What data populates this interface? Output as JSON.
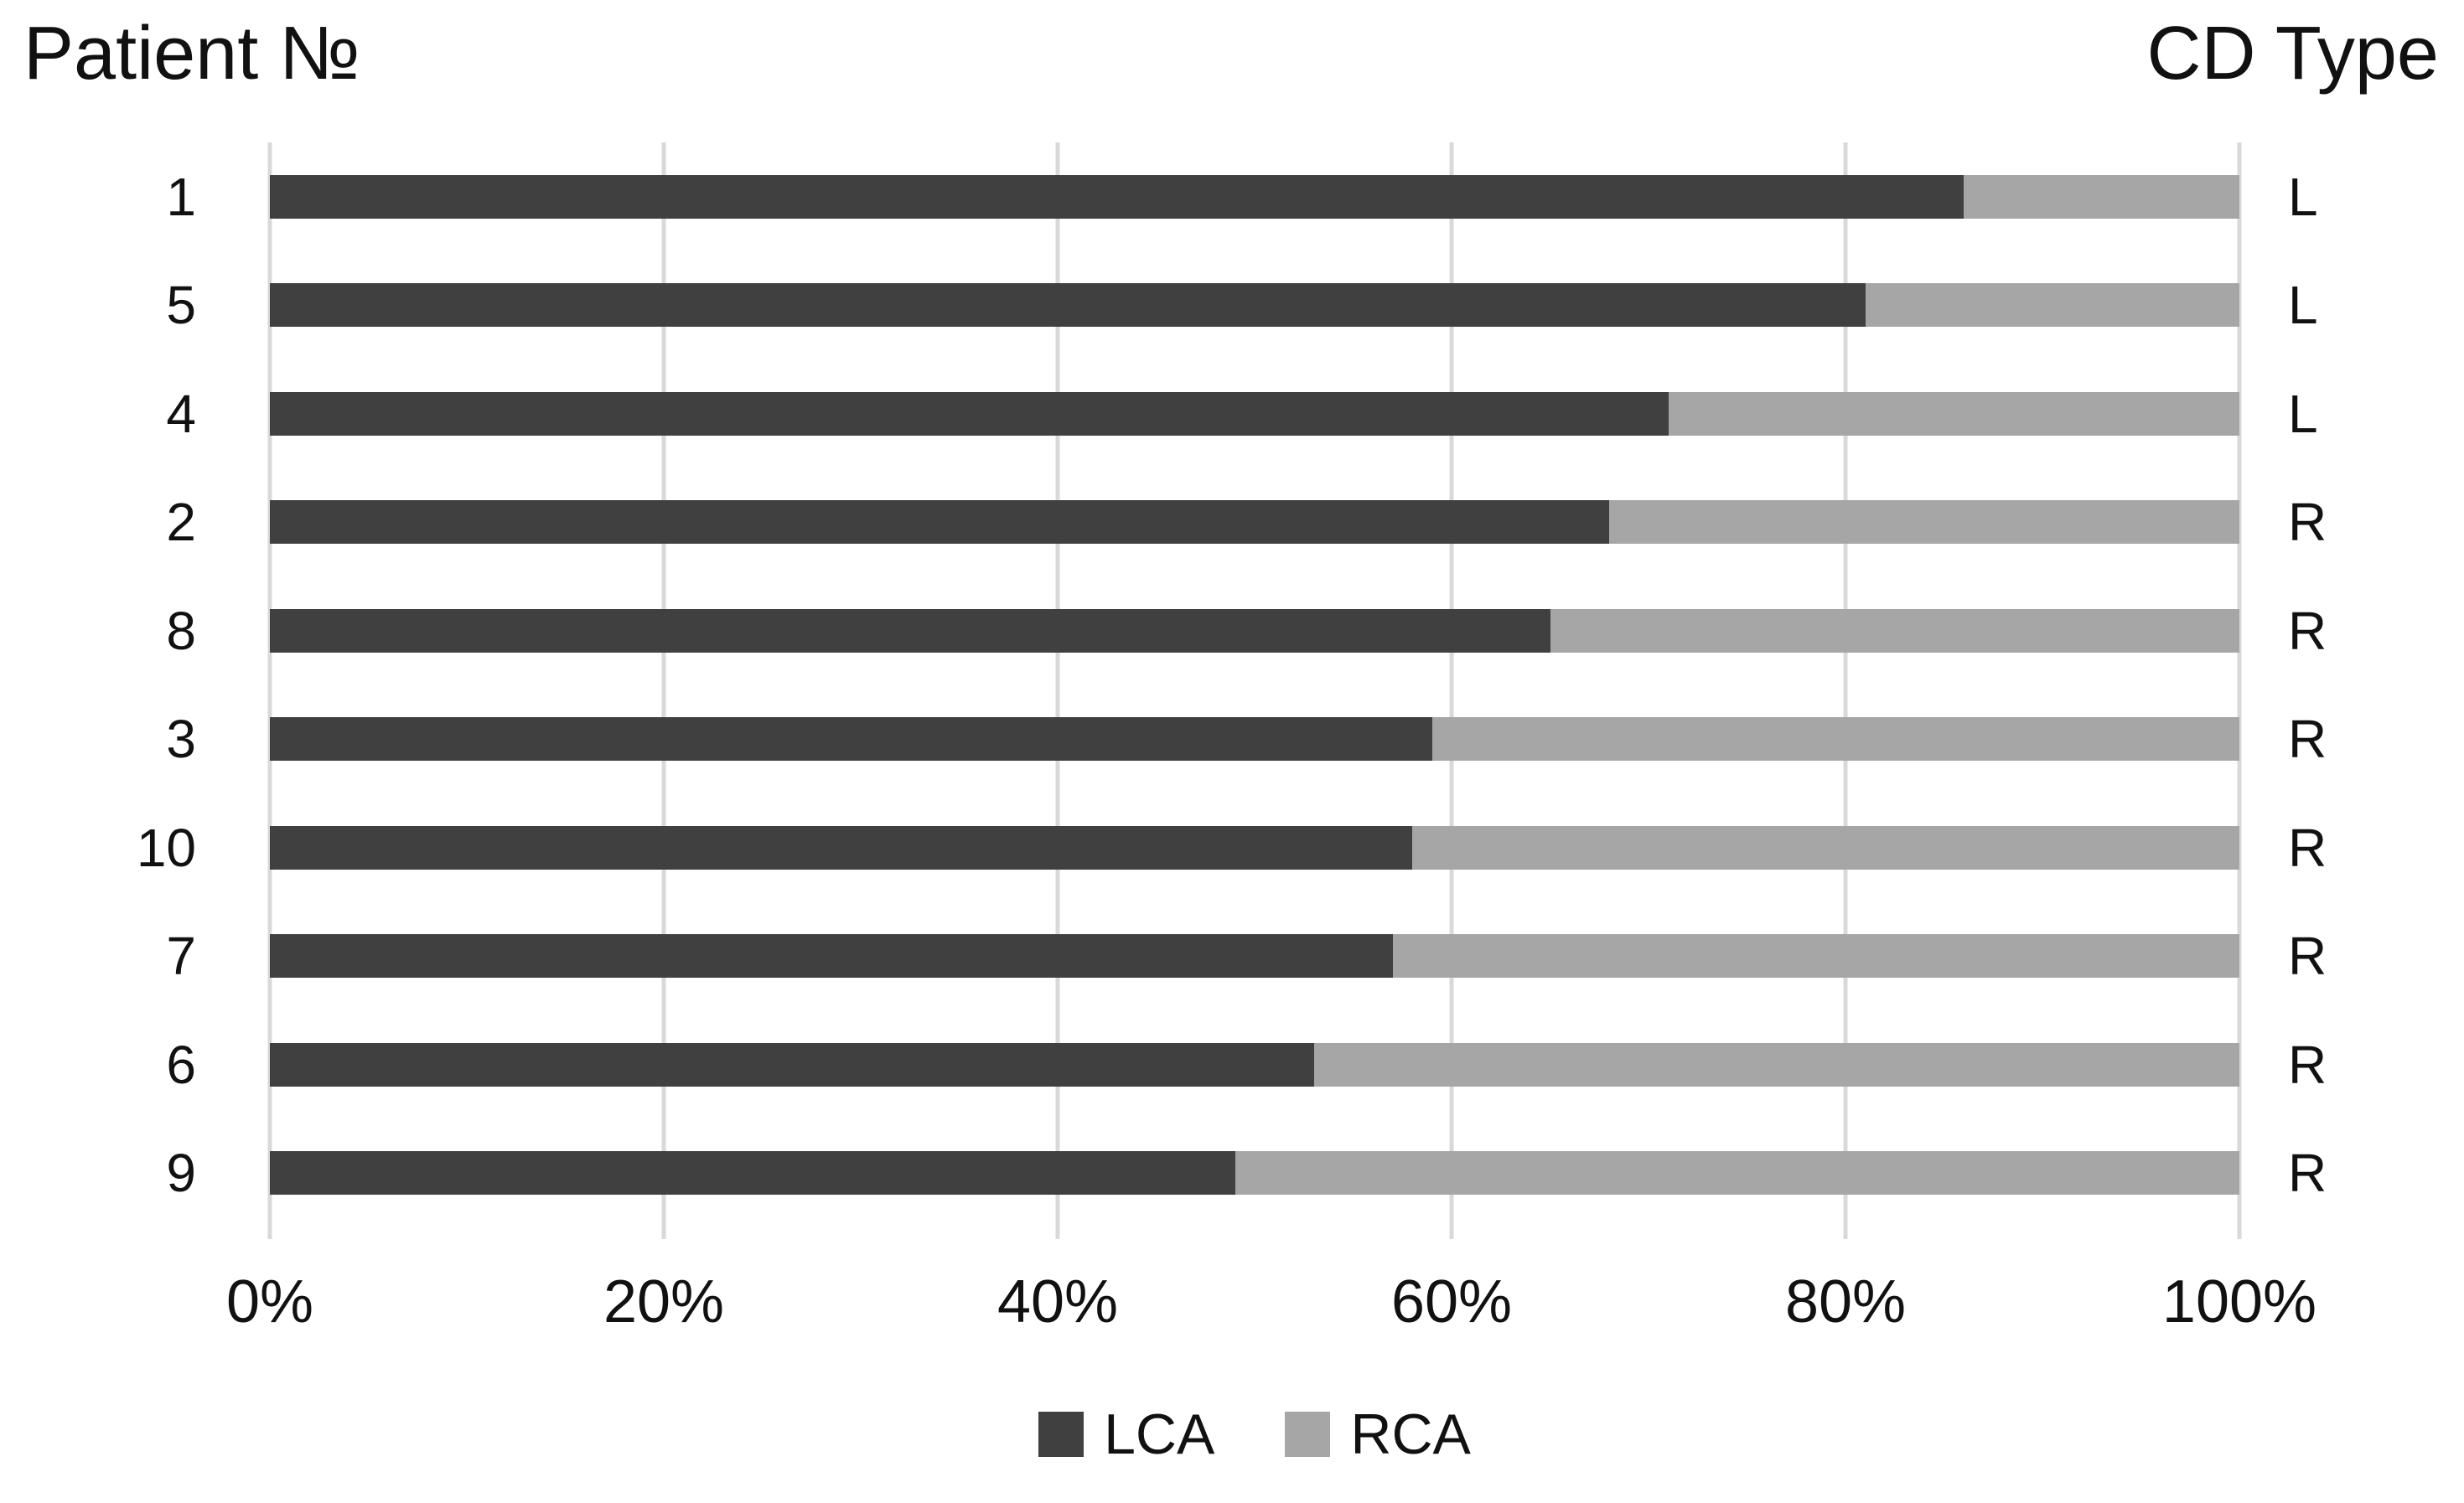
{
  "header": {
    "left_title": "Patient №",
    "right_title": "CD Type"
  },
  "colors": {
    "lca": "#404040",
    "rca": "#a6a6a6",
    "gridline": "#d9d9d9",
    "background": "#ffffff",
    "text": "#111111"
  },
  "chart_data": {
    "type": "bar",
    "orientation": "horizontal",
    "stacked": true,
    "title": "",
    "left_header": "Patient №",
    "right_header": "CD Type",
    "categories": [
      "1",
      "5",
      "4",
      "2",
      "8",
      "3",
      "10",
      "7",
      "6",
      "9"
    ],
    "cd_type": [
      "L",
      "L",
      "L",
      "R",
      "R",
      "R",
      "R",
      "R",
      "R",
      "R"
    ],
    "series": [
      {
        "name": "LCA",
        "color": "#404040",
        "values": [
          86,
          81,
          71,
          68,
          65,
          59,
          58,
          57,
          53,
          49
        ]
      },
      {
        "name": "RCA",
        "color": "#a6a6a6",
        "values": [
          14,
          19,
          29,
          32,
          35,
          41,
          42,
          43,
          47,
          51
        ]
      }
    ],
    "x_ticks": [
      "0%",
      "20%",
      "40%",
      "60%",
      "80%",
      "100%"
    ],
    "xlim": [
      0,
      100
    ],
    "grid": true,
    "legend_position": "bottom",
    "units": "%"
  }
}
